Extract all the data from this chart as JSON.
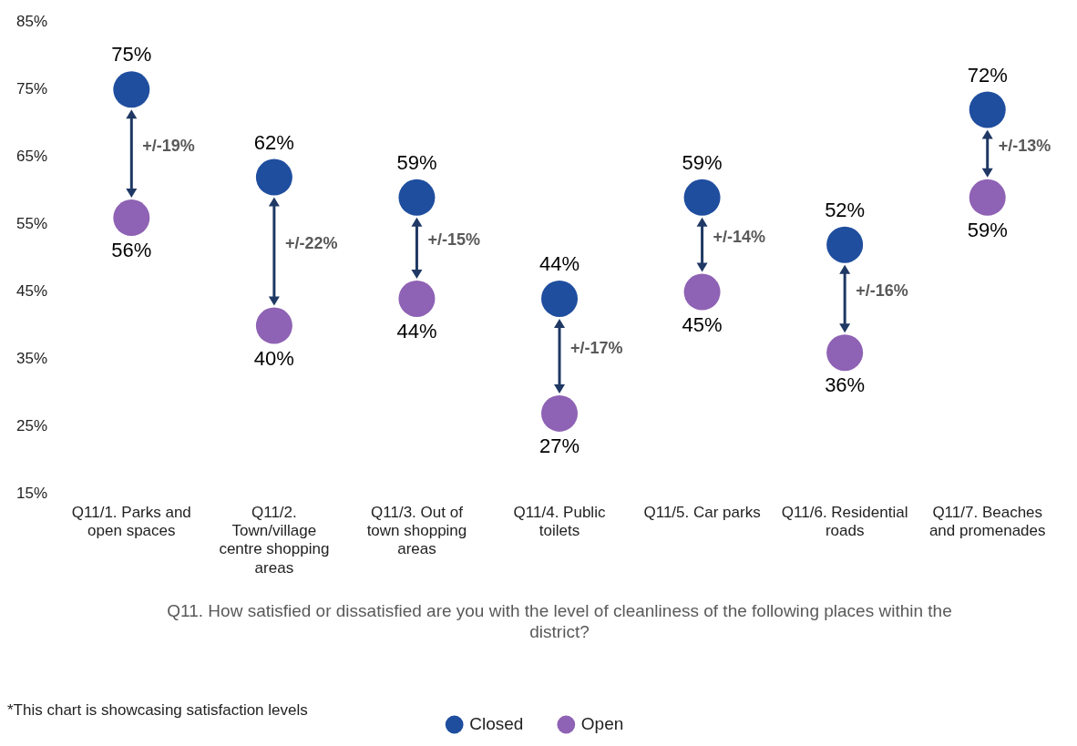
{
  "chart_data": {
    "type": "scatter",
    "categories": [
      "Q11/1. Parks and open spaces",
      "Q11/2. Town/village centre shopping areas",
      "Q11/3. Out of town shopping areas",
      "Q11/4. Public toilets",
      "Q11/5. Car parks",
      "Q11/6. Residential roads",
      "Q11/7. Beaches and promenades"
    ],
    "series": [
      {
        "name": "Closed",
        "color": "#1f4e9f",
        "values": [
          75,
          62,
          59,
          44,
          59,
          52,
          72
        ],
        "value_labels": [
          "75%",
          "62%",
          "59%",
          "44%",
          "59%",
          "52%",
          "72%"
        ]
      },
      {
        "name": "Open",
        "color": "#8e62b4",
        "values": [
          56,
          40,
          44,
          27,
          45,
          36,
          59
        ],
        "value_labels": [
          "56%",
          "40%",
          "44%",
          "27%",
          "45%",
          "36%",
          "59%"
        ]
      }
    ],
    "ylim": [
      15,
      85
    ],
    "yticks": [
      {
        "value": 15,
        "label": "15%"
      },
      {
        "value": 25,
        "label": "25%"
      },
      {
        "value": 35,
        "label": "35%"
      },
      {
        "value": 45,
        "label": "45%"
      },
      {
        "value": 55,
        "label": "55%"
      },
      {
        "value": 65,
        "label": "65%"
      },
      {
        "value": 75,
        "label": "75%"
      },
      {
        "value": 85,
        "label": "85%"
      }
    ],
    "xlabel": "Q11. How satisfied or dissatisfied are you with the level of cleanliness of the following places within the district?",
    "annotations": [
      "+/-19%",
      "+/-22%",
      "+/-15%",
      "+/-17%",
      "+/-14%",
      "+/-16%",
      "+/-13%",
      "*This chart is showcasing satisfaction levels"
    ],
    "marker": "circle",
    "grid": false,
    "legend": "bottom"
  }
}
